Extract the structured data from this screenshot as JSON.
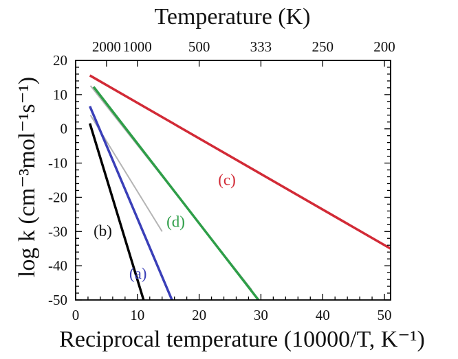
{
  "chart_data": {
    "type": "line",
    "title": "",
    "xlabel": "Reciprocal temperature (10000/T, K⁻¹)",
    "ylabel": "log k (cm⁻³mol⁻¹s⁻¹)",
    "top_axis_label": "Temperature (K)",
    "xlim": [
      0,
      51
    ],
    "ylim": [
      -50,
      20
    ],
    "x_ticks": [
      0,
      10,
      20,
      30,
      40,
      50
    ],
    "y_ticks": [
      20,
      10,
      0,
      -10,
      -20,
      -30,
      -40,
      -50
    ],
    "top_ticks": [
      {
        "label": "2000",
        "x": 5
      },
      {
        "label": "1000",
        "x": 10
      },
      {
        "label": "500",
        "x": 20
      },
      {
        "label": "333",
        "x": 30
      },
      {
        "label": "250",
        "x": 40
      },
      {
        "label": "200",
        "x": 50
      }
    ],
    "grid": false,
    "legend": "none",
    "series": [
      {
        "name": "(a)",
        "color": "#3a3fb8",
        "x": [
          2.3,
          15.6
        ],
        "y": [
          6.6,
          -50
        ],
        "label_at": [
          10.1,
          -42.2
        ],
        "label_color": "#3a3fb8"
      },
      {
        "name": "(b)",
        "color": "#000000",
        "x": [
          2.3,
          11.0
        ],
        "y": [
          1.6,
          -50
        ],
        "label_at": [
          4.4,
          -29.7
        ],
        "label_color": "#111111"
      },
      {
        "name": "(c)",
        "color": "#d22a36",
        "x": [
          2.3,
          51.0
        ],
        "y": [
          15.6,
          -35.0
        ],
        "label_at": [
          24.5,
          -14.8
        ],
        "label_color": "#d22a36"
      },
      {
        "name": "(d)",
        "color": "#2e9e48",
        "x": [
          2.9,
          29.6
        ],
        "y": [
          12.3,
          -50
        ],
        "label_at": [
          16.2,
          -27.0
        ],
        "label_color": "#2e9e48"
      }
    ],
    "shadow_lines": [
      {
        "color": "#b4b4b4",
        "x": [
          2.4,
          28.5
        ],
        "y": [
          12.6,
          -47.0
        ]
      },
      {
        "color": "#b4b4b4",
        "x": [
          2.4,
          14.0
        ],
        "y": [
          4.0,
          -30.0
        ]
      }
    ]
  }
}
